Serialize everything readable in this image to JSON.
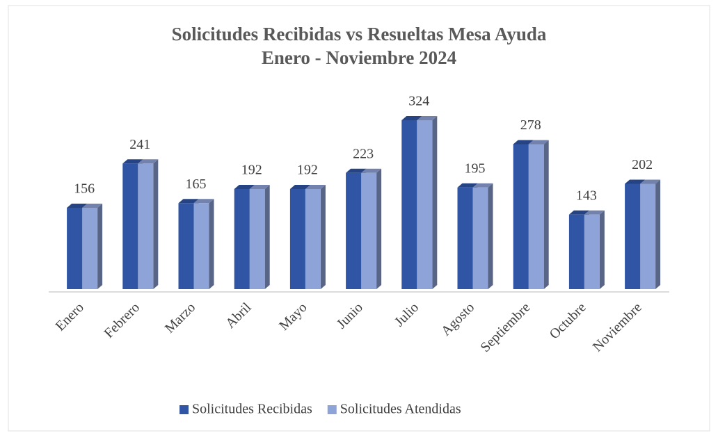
{
  "chart_data": {
    "type": "bar3d",
    "title": "Solicitudes Recibidas vs Resueltas Mesa Ayuda",
    "subtitle": "Enero - Noviembre 2024",
    "categories": [
      "Enero",
      "Febrero",
      "Marzo",
      "Abril",
      "Mayo",
      "Junio",
      "Julio",
      "Agosto",
      "Septiembre",
      "Octubre",
      "Noviembre"
    ],
    "series": [
      {
        "name": "Solicitudes Recibidas",
        "color": "#2f55a4",
        "values": [
          156,
          241,
          165,
          192,
          192,
          223,
          324,
          195,
          278,
          143,
          202
        ]
      },
      {
        "name": "Solicitudes Atendidas",
        "color": "#8ea3d8",
        "values": [
          156,
          241,
          165,
          192,
          192,
          223,
          324,
          195,
          278,
          143,
          202
        ]
      }
    ],
    "legend": "bottom"
  }
}
